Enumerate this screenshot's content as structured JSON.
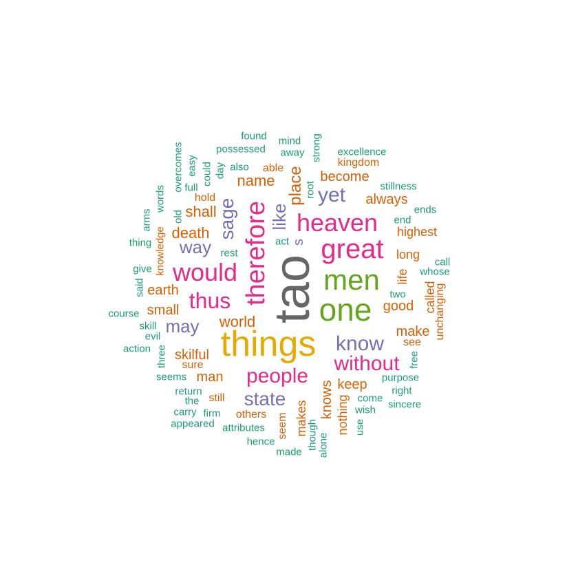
{
  "colors": {
    "teal": "#1b9e77",
    "orange": "#d95f02",
    "purple": "#7570b3",
    "magenta": "#e7298a",
    "green": "#66a61e",
    "gold": "#e6ab02",
    "gray": "#666666"
  },
  "words": [
    {
      "text": "tao",
      "color": "gray"
    },
    {
      "text": "things",
      "color": "gold"
    },
    {
      "text": "one",
      "color": "green"
    },
    {
      "text": "men",
      "color": "green"
    },
    {
      "text": "great",
      "color": "magenta"
    },
    {
      "text": "heaven",
      "color": "magenta"
    },
    {
      "text": "therefore",
      "color": "magenta"
    },
    {
      "text": "would",
      "color": "magenta"
    },
    {
      "text": "thus",
      "color": "magenta"
    },
    {
      "text": "people",
      "color": "magenta"
    },
    {
      "text": "without",
      "color": "magenta"
    },
    {
      "text": "know",
      "color": "purple"
    },
    {
      "text": "state",
      "color": "purple"
    },
    {
      "text": "sage",
      "color": "purple"
    },
    {
      "text": "yet",
      "color": "purple"
    },
    {
      "text": "like",
      "color": "purple"
    },
    {
      "text": "way",
      "color": "purple"
    },
    {
      "text": "may",
      "color": "purple"
    },
    {
      "text": "s",
      "color": "purple"
    },
    {
      "text": "place",
      "color": "orange"
    },
    {
      "text": "name",
      "color": "orange"
    },
    {
      "text": "become",
      "color": "orange"
    },
    {
      "text": "always",
      "color": "orange"
    },
    {
      "text": "kingdom",
      "color": "orange"
    },
    {
      "text": "able",
      "color": "orange"
    },
    {
      "text": "shall",
      "color": "orange"
    },
    {
      "text": "hold",
      "color": "orange"
    },
    {
      "text": "death",
      "color": "orange"
    },
    {
      "text": "earth",
      "color": "orange"
    },
    {
      "text": "small",
      "color": "orange"
    },
    {
      "text": "world",
      "color": "orange"
    },
    {
      "text": "skilful",
      "color": "orange"
    },
    {
      "text": "sure",
      "color": "orange"
    },
    {
      "text": "man",
      "color": "orange"
    },
    {
      "text": "still",
      "color": "orange"
    },
    {
      "text": "others",
      "color": "orange"
    },
    {
      "text": "seem",
      "color": "orange"
    },
    {
      "text": "makes",
      "color": "orange"
    },
    {
      "text": "knows",
      "color": "orange"
    },
    {
      "text": "nothing",
      "color": "orange"
    },
    {
      "text": "keep",
      "color": "orange"
    },
    {
      "text": "good",
      "color": "orange"
    },
    {
      "text": "make",
      "color": "orange"
    },
    {
      "text": "see",
      "color": "orange"
    },
    {
      "text": "long",
      "color": "orange"
    },
    {
      "text": "life",
      "color": "orange"
    },
    {
      "text": "highest",
      "color": "orange"
    },
    {
      "text": "called",
      "color": "orange"
    },
    {
      "text": "unchanging",
      "color": "orange"
    },
    {
      "text": "knowledge",
      "color": "orange"
    },
    {
      "text": "found",
      "color": "teal"
    },
    {
      "text": "mind",
      "color": "teal"
    },
    {
      "text": "strong",
      "color": "teal"
    },
    {
      "text": "possessed",
      "color": "teal"
    },
    {
      "text": "away",
      "color": "teal"
    },
    {
      "text": "excellence",
      "color": "teal"
    },
    {
      "text": "overcomes",
      "color": "teal"
    },
    {
      "text": "easy",
      "color": "teal"
    },
    {
      "text": "could",
      "color": "teal"
    },
    {
      "text": "day",
      "color": "teal"
    },
    {
      "text": "also",
      "color": "teal"
    },
    {
      "text": "root",
      "color": "teal"
    },
    {
      "text": "stillness",
      "color": "teal"
    },
    {
      "text": "full",
      "color": "teal"
    },
    {
      "text": "words",
      "color": "teal"
    },
    {
      "text": "arms",
      "color": "teal"
    },
    {
      "text": "old",
      "color": "teal"
    },
    {
      "text": "ends",
      "color": "teal"
    },
    {
      "text": "end",
      "color": "teal"
    },
    {
      "text": "thing",
      "color": "teal"
    },
    {
      "text": "act",
      "color": "teal"
    },
    {
      "text": "rest",
      "color": "teal"
    },
    {
      "text": "call",
      "color": "teal"
    },
    {
      "text": "whose",
      "color": "teal"
    },
    {
      "text": "give",
      "color": "teal"
    },
    {
      "text": "said",
      "color": "teal"
    },
    {
      "text": "two",
      "color": "teal"
    },
    {
      "text": "course",
      "color": "teal"
    },
    {
      "text": "skill",
      "color": "teal"
    },
    {
      "text": "evil",
      "color": "teal"
    },
    {
      "text": "action",
      "color": "teal"
    },
    {
      "text": "three",
      "color": "teal"
    },
    {
      "text": "free",
      "color": "teal"
    },
    {
      "text": "seems",
      "color": "teal"
    },
    {
      "text": "purpose",
      "color": "teal"
    },
    {
      "text": "return",
      "color": "teal"
    },
    {
      "text": "right",
      "color": "teal"
    },
    {
      "text": "the",
      "color": "teal"
    },
    {
      "text": "come",
      "color": "teal"
    },
    {
      "text": "sincere",
      "color": "teal"
    },
    {
      "text": "carry",
      "color": "teal"
    },
    {
      "text": "firm",
      "color": "teal"
    },
    {
      "text": "wish",
      "color": "teal"
    },
    {
      "text": "appeared",
      "color": "teal"
    },
    {
      "text": "attributes",
      "color": "teal"
    },
    {
      "text": "though",
      "color": "teal"
    },
    {
      "text": "use",
      "color": "teal"
    },
    {
      "text": "hence",
      "color": "teal"
    },
    {
      "text": "alone",
      "color": "teal"
    },
    {
      "text": "made",
      "color": "teal"
    }
  ]
}
